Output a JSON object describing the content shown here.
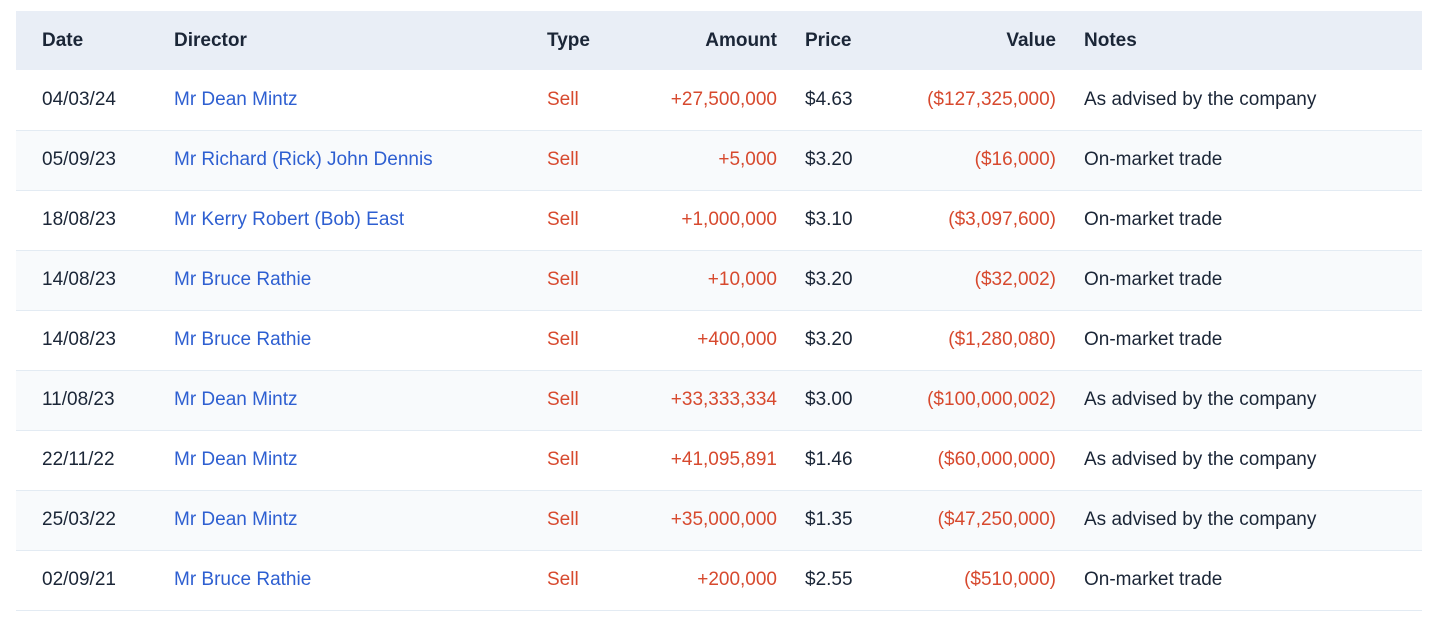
{
  "table": {
    "columns": [
      {
        "key": "date",
        "label": "Date",
        "align": "left"
      },
      {
        "key": "director",
        "label": "Director",
        "align": "left"
      },
      {
        "key": "type",
        "label": "Type",
        "align": "left"
      },
      {
        "key": "amount",
        "label": "Amount",
        "align": "right"
      },
      {
        "key": "price",
        "label": "Price",
        "align": "left"
      },
      {
        "key": "value",
        "label": "Value",
        "align": "right"
      },
      {
        "key": "notes",
        "label": "Notes",
        "align": "left"
      }
    ],
    "rows": [
      {
        "date": "04/03/24",
        "director": "Mr Dean Mintz",
        "type": "Sell",
        "amount": "+27,500,000",
        "price": "$4.63",
        "value": "($127,325,000)",
        "notes": "As advised by the company"
      },
      {
        "date": "05/09/23",
        "director": "Mr Richard (Rick) John Dennis",
        "type": "Sell",
        "amount": "+5,000",
        "price": "$3.20",
        "value": "($16,000)",
        "notes": "On-market trade"
      },
      {
        "date": "18/08/23",
        "director": "Mr Kerry Robert (Bob) East",
        "type": "Sell",
        "amount": "+1,000,000",
        "price": "$3.10",
        "value": "($3,097,600)",
        "notes": "On-market trade"
      },
      {
        "date": "14/08/23",
        "director": "Mr Bruce Rathie",
        "type": "Sell",
        "amount": "+10,000",
        "price": "$3.20",
        "value": "($32,002)",
        "notes": "On-market trade"
      },
      {
        "date": "14/08/23",
        "director": "Mr Bruce Rathie",
        "type": "Sell",
        "amount": "+400,000",
        "price": "$3.20",
        "value": "($1,280,080)",
        "notes": "On-market trade"
      },
      {
        "date": "11/08/23",
        "director": "Mr Dean Mintz",
        "type": "Sell",
        "amount": "+33,333,334",
        "price": "$3.00",
        "value": "($100,000,002)",
        "notes": "As advised by the company"
      },
      {
        "date": "22/11/22",
        "director": "Mr Dean Mintz",
        "type": "Sell",
        "amount": "+41,095,891",
        "price": "$1.46",
        "value": "($60,000,000)",
        "notes": "As advised by the company"
      },
      {
        "date": "25/03/22",
        "director": "Mr Dean Mintz",
        "type": "Sell",
        "amount": "+35,000,000",
        "price": "$1.35",
        "value": "($47,250,000)",
        "notes": "As advised by the company"
      },
      {
        "date": "02/09/21",
        "director": "Mr Bruce Rathie",
        "type": "Sell",
        "amount": "+200,000",
        "price": "$2.55",
        "value": "($510,000)",
        "notes": "On-market trade"
      }
    ]
  },
  "colors": {
    "header_bg": "#e9eef6",
    "row_alt_bg": "#f8fafc",
    "row_border": "#e3ebf3",
    "text_dark": "#1b2637",
    "director_link_blue": "#2e5fd1",
    "sell_red": "#d7492e"
  }
}
